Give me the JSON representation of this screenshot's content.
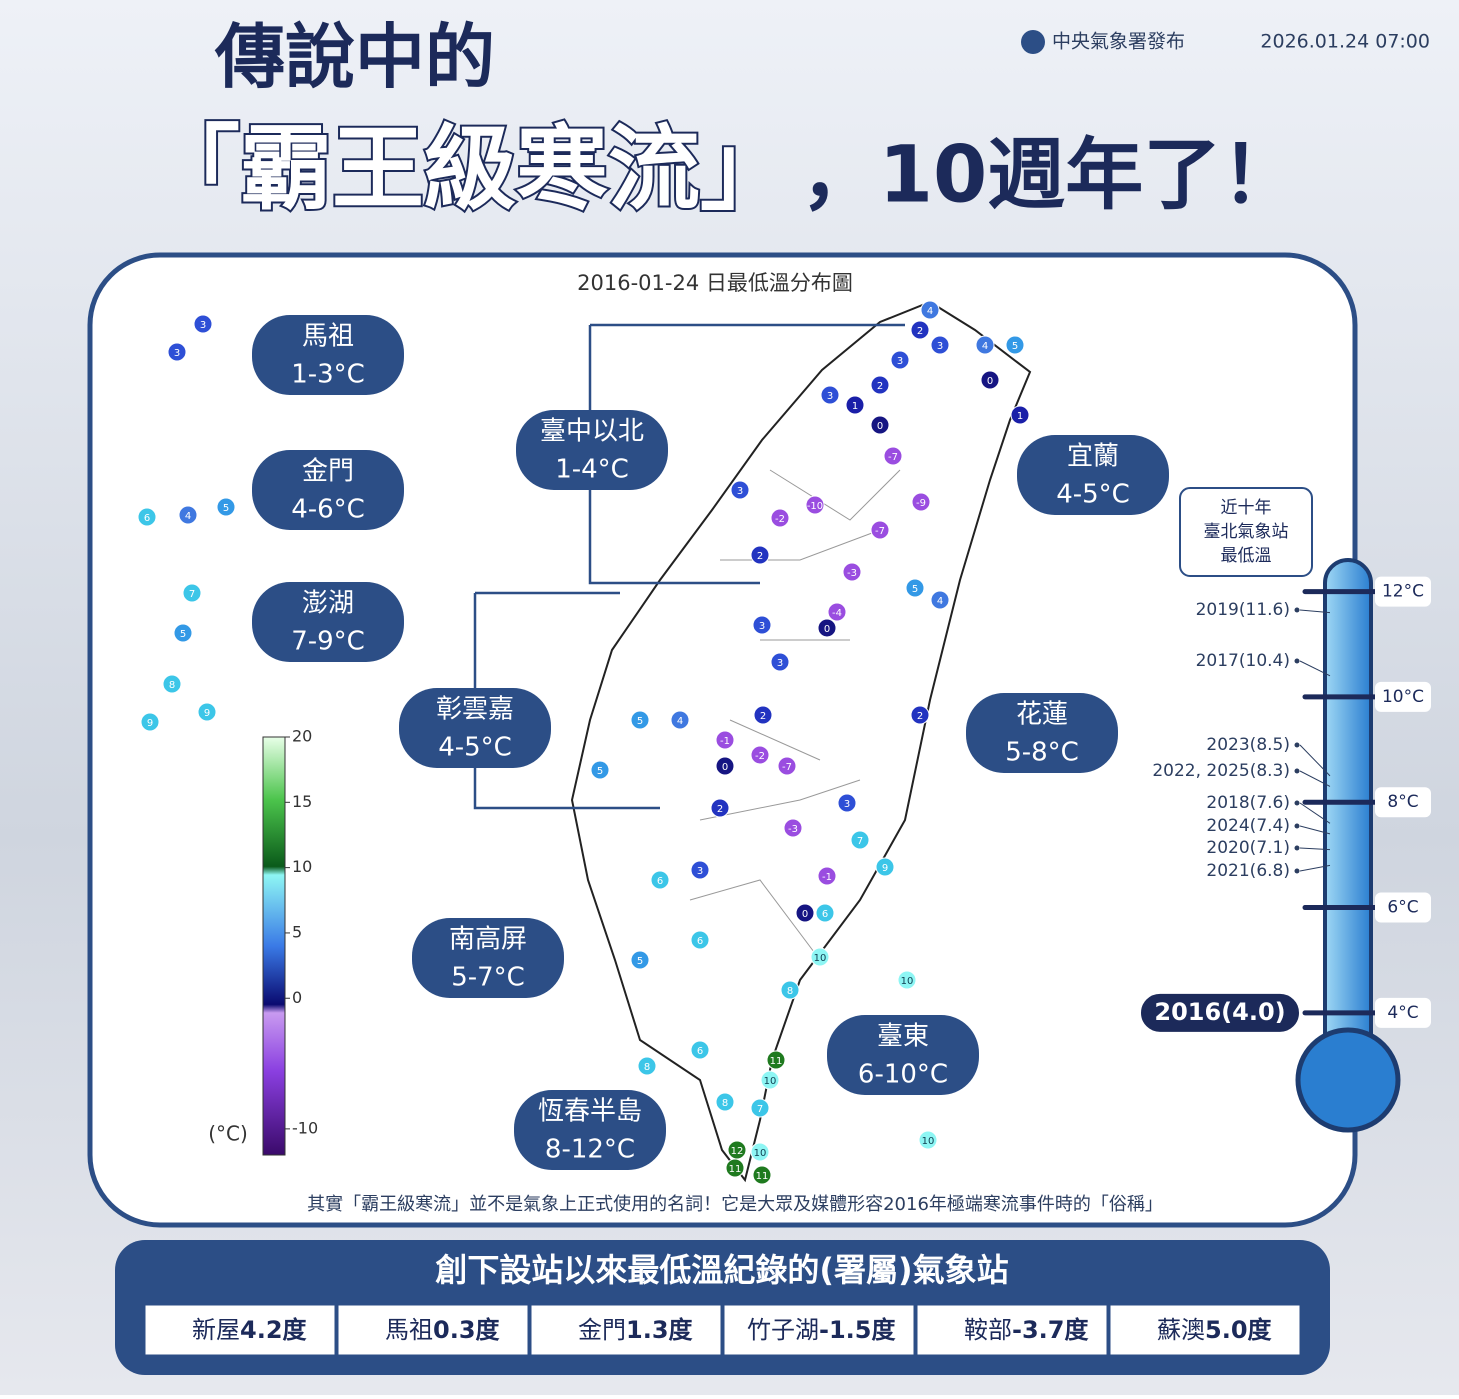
{
  "header": {
    "title_line1": "傳說中的",
    "title_line2": "「霸王級寒流」",
    "title_suffix": "，10週年了！",
    "publisher": "中央氣象署發布",
    "date": "2026.01.24 07:00"
  },
  "map": {
    "title": "2016-01-24 日最低溫分布圖",
    "regions": [
      {
        "name": "馬祖",
        "range": "1-3°C"
      },
      {
        "name": "金門",
        "range": "4-6°C"
      },
      {
        "name": "澎湖",
        "range": "7-9°C"
      },
      {
        "name": "臺中以北",
        "range": "1-4°C"
      },
      {
        "name": "宜蘭",
        "range": "4-5°C"
      },
      {
        "name": "彰雲嘉",
        "range": "4-5°C"
      },
      {
        "name": "花蓮",
        "range": "5-8°C"
      },
      {
        "name": "南高屏",
        "range": "5-7°C"
      },
      {
        "name": "臺東",
        "range": "6-10°C"
      },
      {
        "name": "恆春半島",
        "range": "8-12°C"
      }
    ],
    "stations": [
      4,
      2,
      3,
      4,
      5,
      3,
      2,
      1,
      3,
      0,
      0,
      1,
      -7,
      -9,
      -10,
      -2,
      3,
      2,
      -7,
      -3,
      -4,
      0,
      3,
      3,
      2,
      5,
      4,
      2,
      -1,
      -2,
      0,
      -7,
      5,
      4,
      5,
      2,
      3,
      -3,
      3,
      -1,
      0,
      6,
      6,
      5,
      6,
      10,
      10,
      8,
      6,
      8,
      11,
      10,
      8,
      7,
      12,
      10,
      11,
      11,
      10,
      9,
      7,
      3,
      3,
      4,
      6,
      5,
      7,
      5,
      8,
      9,
      9
    ],
    "colorbar": {
      "unit": "(°C)",
      "ylim": [
        -12,
        20
      ],
      "ticks": [
        20,
        15,
        10,
        5,
        0,
        -10
      ]
    }
  },
  "thermometer": {
    "title": [
      "近十年",
      "臺北氣象站",
      "最低溫"
    ],
    "ylim": [
      3.2,
      12.6
    ],
    "ticks": [
      {
        "value": 12,
        "label": "12°C"
      },
      {
        "value": 10,
        "label": "10°C"
      },
      {
        "value": 8,
        "label": "8°C"
      },
      {
        "value": 6,
        "label": "6°C"
      },
      {
        "value": 4,
        "label": "4°C"
      }
    ],
    "records": [
      {
        "label": "2019(11.6)",
        "value": 11.6
      },
      {
        "label": "2017(10.4)",
        "value": 10.4
      },
      {
        "label": "2023(8.5)",
        "value": 8.5
      },
      {
        "label": "2022, 2025(8.3)",
        "value": 8.3
      },
      {
        "label": "2018(7.6)",
        "value": 7.6
      },
      {
        "label": "2024(7.4)",
        "value": 7.4
      },
      {
        "label": "2020(7.1)",
        "value": 7.1
      },
      {
        "label": "2021(6.8)",
        "value": 6.8
      }
    ],
    "highlight": {
      "label": "2016(4.0)",
      "value": 4.0
    }
  },
  "note": "其實「霸王級寒流」並不是氣象上正式使用的名詞！它是大眾及媒體形容2016年極端寒流事件時的「俗稱」",
  "records": {
    "title": "創下設站以來最低溫紀錄的(署屬)氣象站",
    "items": [
      {
        "station": "新屋",
        "value": "4.2度"
      },
      {
        "station": "馬祖",
        "value": "0.3度"
      },
      {
        "station": "金門",
        "value": "1.3度"
      },
      {
        "station": "竹子湖",
        "value": "-1.5度"
      },
      {
        "station": "鞍部",
        "value": "-3.7度"
      },
      {
        "station": "蘇澳",
        "value": "5.0度"
      }
    ]
  }
}
